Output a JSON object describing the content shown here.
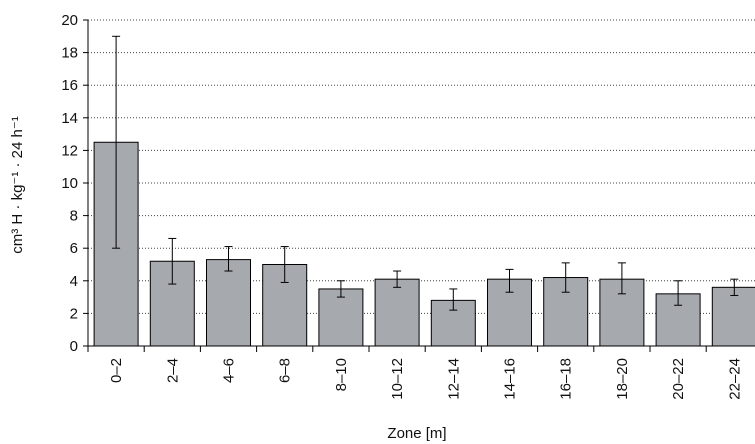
{
  "chart_data": {
    "type": "bar",
    "title": "",
    "xlabel": "Zone [m]",
    "ylabel": "cm³ H · kg⁻¹ · 24 h⁻¹",
    "categories": [
      "0–2",
      "2–4",
      "4–6",
      "6–8",
      "8–10",
      "10–12",
      "12–14",
      "14–16",
      "16–18",
      "18–20",
      "20–22",
      "22–24"
    ],
    "values": [
      12.5,
      5.2,
      5.3,
      5.0,
      3.5,
      4.1,
      2.8,
      4.1,
      4.2,
      4.1,
      3.2,
      3.6
    ],
    "error_low": [
      6.0,
      3.8,
      4.6,
      3.9,
      3.0,
      3.6,
      2.2,
      3.3,
      3.3,
      3.2,
      2.5,
      3.1
    ],
    "error_high": [
      19.0,
      6.6,
      6.1,
      6.1,
      4.0,
      4.6,
      3.5,
      4.7,
      5.1,
      5.1,
      4.0,
      4.1
    ],
    "ylim": [
      0,
      20
    ],
    "yticks": [
      "0",
      "2",
      "4",
      "6",
      "8",
      "10",
      "12",
      "14",
      "16",
      "18",
      "20"
    ],
    "grid": "horizontal dotted",
    "legend": "none",
    "colors": {
      "bar_fill": "#a6a9ae",
      "bar_edge": "#000000",
      "grid": "#444444"
    }
  }
}
